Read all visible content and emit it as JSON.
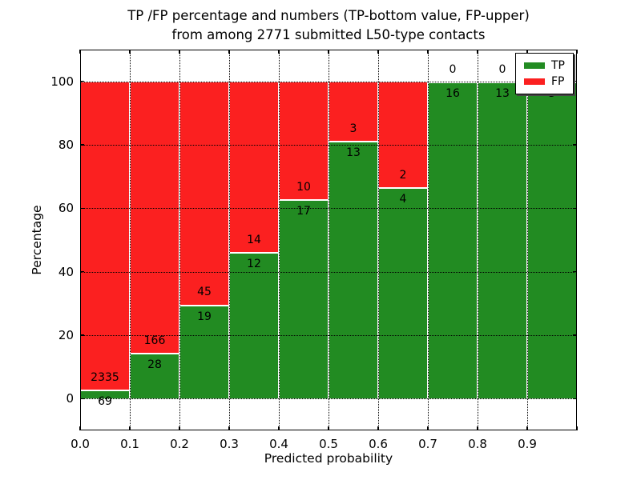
{
  "title": {
    "line1": "TP /FP percentage and numbers (TP-bottom value, FP-upper)",
    "line2": "from among 2771 submitted L50-type contacts"
  },
  "axes": {
    "xlabel": "Predicted probability",
    "ylabel": "Percentage",
    "x_tick_labels": [
      "0.0",
      "0.1",
      "0.2",
      "0.3",
      "0.4",
      "0.5",
      "0.6",
      "0.7",
      "0.8",
      "0.9"
    ],
    "y_tick_labels": [
      "0",
      "20",
      "40",
      "60",
      "80",
      "100"
    ],
    "y_tick_values": [
      0,
      20,
      40,
      60,
      80,
      100
    ]
  },
  "legend": {
    "items": [
      {
        "label": "TP",
        "color": "#228b22"
      },
      {
        "label": "FP",
        "color": "#fb2020"
      }
    ]
  },
  "chart_data": {
    "type": "bar",
    "stacked": true,
    "title": "TP /FP percentage and numbers (TP-bottom value, FP-upper) from among 2771 submitted L50-type contacts",
    "xlabel": "Predicted probability",
    "ylabel": "Percentage",
    "x_bin_edges": [
      0.0,
      0.1,
      0.2,
      0.3,
      0.4,
      0.5,
      0.6,
      0.7,
      0.8,
      0.9,
      1.0
    ],
    "categories": [
      "0.0-0.1",
      "0.1-0.2",
      "0.2-0.3",
      "0.3-0.4",
      "0.4-0.5",
      "0.5-0.6",
      "0.6-0.7",
      "0.7-0.8",
      "0.8-0.9",
      "0.9-1.0"
    ],
    "series": [
      {
        "name": "TP",
        "color": "#228b22",
        "counts": [
          69,
          28,
          19,
          12,
          17,
          13,
          4,
          16,
          13,
          5
        ],
        "percent": [
          2.87,
          14.43,
          29.69,
          46.15,
          62.96,
          81.25,
          66.67,
          100.0,
          100.0,
          100.0
        ]
      },
      {
        "name": "FP",
        "color": "#fb2020",
        "counts": [
          2335,
          166,
          45,
          14,
          10,
          3,
          2,
          0,
          0,
          0
        ],
        "percent": [
          97.13,
          85.57,
          70.31,
          53.85,
          37.04,
          18.75,
          33.33,
          0.0,
          0.0,
          0.0
        ]
      }
    ],
    "total_contacts": 2771,
    "ylim": [
      -10,
      110
    ],
    "xlim": [
      0.0,
      1.0
    ],
    "grid": true,
    "legend_position": "upper right",
    "bar_label_note": "TP count printed at bottom of boundary, FP count printed above boundary"
  }
}
